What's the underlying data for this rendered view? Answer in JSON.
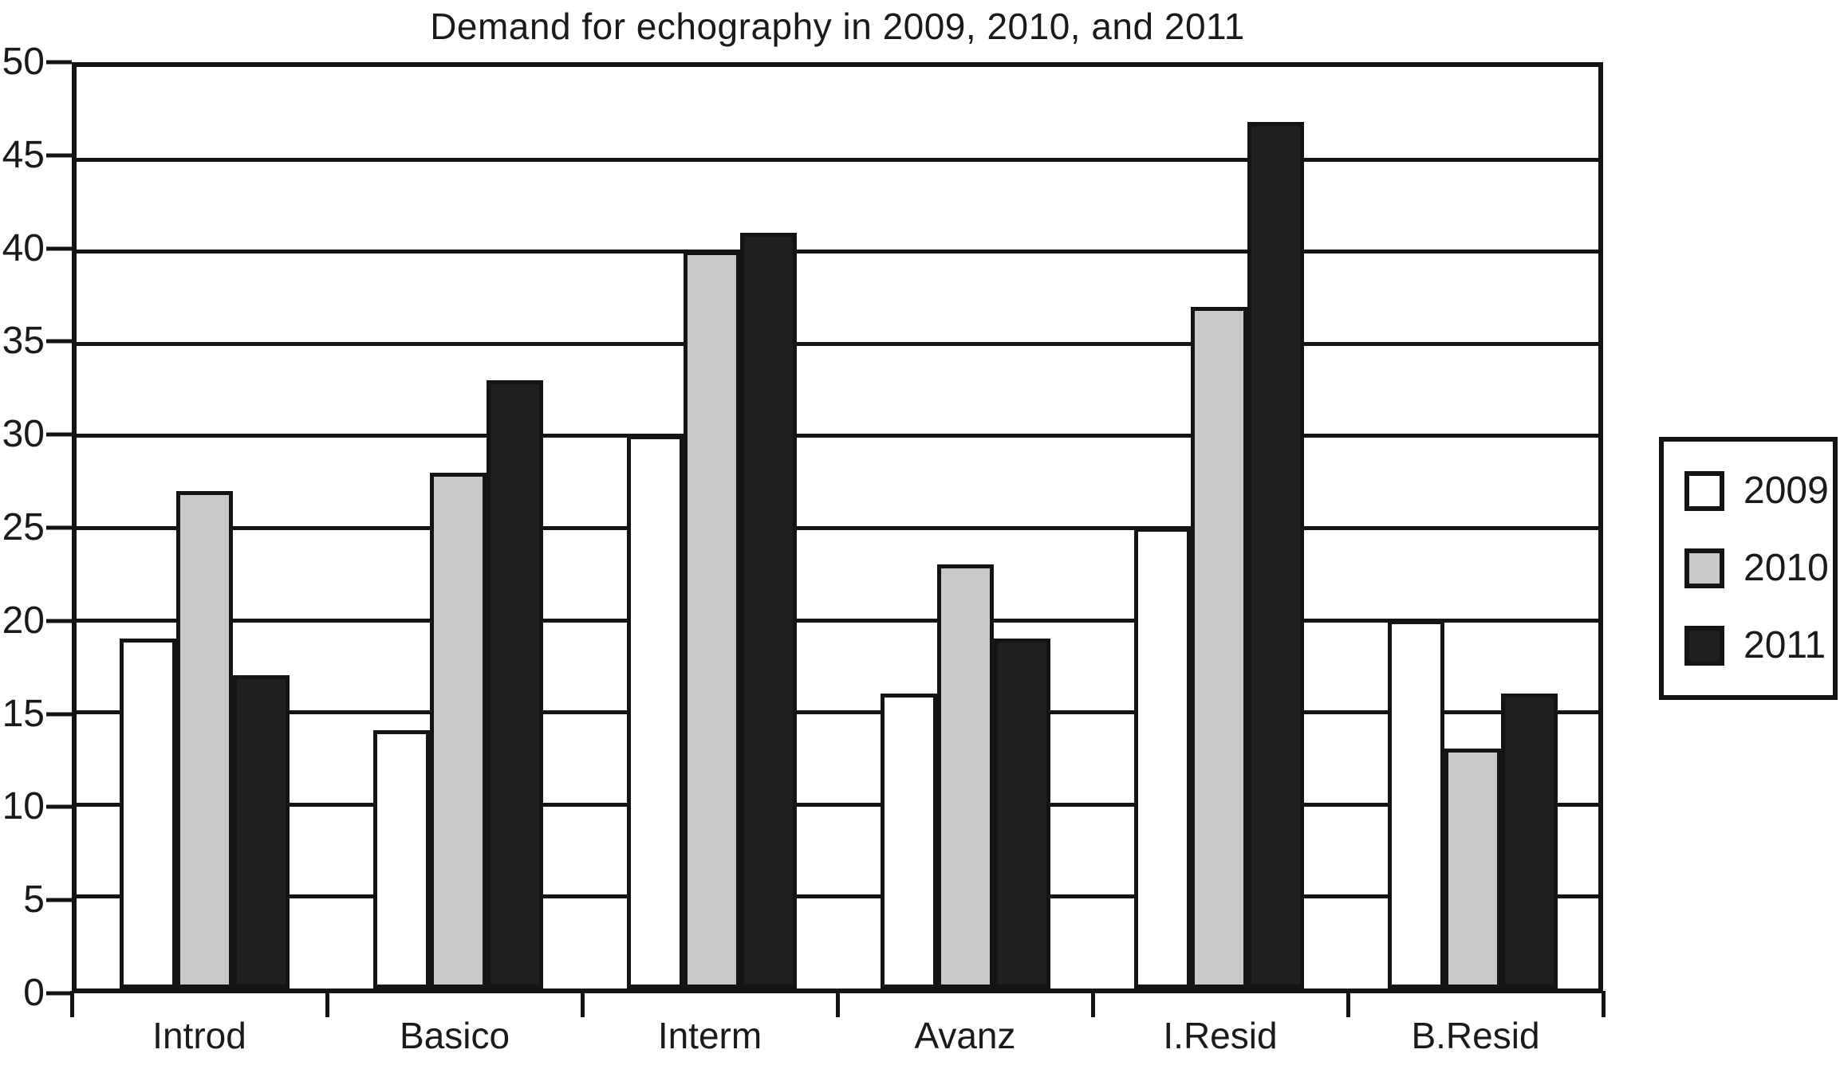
{
  "chart_data": {
    "type": "bar",
    "title": "Demand for echography in 2009, 2010, and 2011",
    "categories": [
      "Introd",
      "Basico",
      "Interm",
      "Avanz",
      "I.Resid",
      "B.Resid"
    ],
    "series": [
      {
        "name": "2009",
        "color": "#ffffff",
        "values": [
          19,
          14,
          30,
          16,
          25,
          20
        ]
      },
      {
        "name": "2010",
        "color": "#c8c8c8",
        "values": [
          27,
          28,
          40,
          23,
          37,
          13
        ]
      },
      {
        "name": "2011",
        "color": "#1f1f1f",
        "values": [
          17,
          33,
          41,
          19,
          47,
          16
        ]
      }
    ],
    "xlabel": "",
    "ylabel": "",
    "ylim": [
      0,
      50
    ],
    "ytick_step": 5,
    "yticks": [
      0,
      5,
      10,
      15,
      20,
      25,
      30,
      35,
      40,
      45,
      50
    ],
    "grid": "horizontal",
    "legend_position": "right",
    "axis_color": "#141414",
    "background_color": "#ffffff"
  }
}
